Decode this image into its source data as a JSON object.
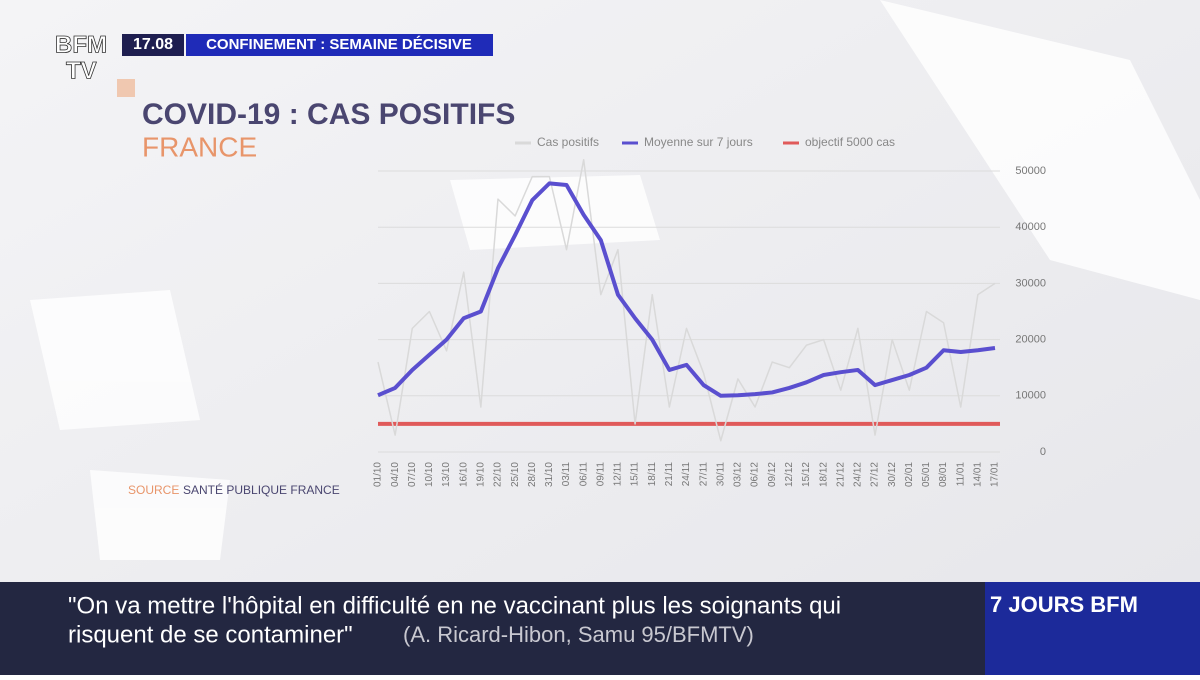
{
  "header": {
    "logo_top": "BFM",
    "logo_bottom": "TV",
    "time": "17.08",
    "headline": "CONFINEMENT : SEMAINE DÉCISIVE"
  },
  "chart_data": {
    "type": "line",
    "title": "COVID-19 : CAS POSITIFS",
    "subtitle": "FRANCE",
    "source_label": "SOURCE",
    "source": "SANTÉ PUBLIQUE FRANCE",
    "categories": [
      "01/10",
      "04/10",
      "07/10",
      "10/10",
      "13/10",
      "16/10",
      "19/10",
      "22/10",
      "25/10",
      "28/10",
      "31/10",
      "03/11",
      "06/11",
      "09/11",
      "12/11",
      "15/11",
      "18/11",
      "21/11",
      "24/11",
      "27/11",
      "30/11",
      "03/12",
      "06/12",
      "09/12",
      "12/12",
      "15/12",
      "18/12",
      "21/12",
      "24/12",
      "27/12",
      "30/12",
      "02/01",
      "05/01",
      "08/01",
      "11/01",
      "14/01",
      "17/01"
    ],
    "series": [
      {
        "name": "Cas positifs",
        "color": "#d9d9d9",
        "values": [
          16000,
          3000,
          22000,
          25000,
          18000,
          32000,
          8000,
          45000,
          42000,
          49000,
          49000,
          36000,
          52000,
          28000,
          36000,
          5000,
          28000,
          8000,
          22000,
          14000,
          2000,
          13000,
          8000,
          16000,
          15000,
          19000,
          20000,
          11000,
          22000,
          3000,
          20000,
          11000,
          25000,
          23000,
          8000,
          28000,
          30000
        ]
      },
      {
        "name": "Moyenne sur 7 jours",
        "color": "#5a4fcf",
        "values": [
          10100,
          11400,
          14600,
          17300,
          20000,
          23800,
          25000,
          32700,
          38600,
          44800,
          47800,
          47500,
          42200,
          37700,
          28000,
          23800,
          20000,
          14600,
          15500,
          11900,
          10000,
          10100,
          10300,
          10600,
          11400,
          12400,
          13700,
          14200,
          14600,
          11900,
          12800,
          13700,
          15000,
          18100,
          17800,
          18100,
          18500
        ]
      }
    ],
    "reference_line": {
      "name": "objectif 5000 cas",
      "value": 5000,
      "color": "#e05a5a"
    },
    "ylim": [
      0,
      50000
    ],
    "yticks": [
      0,
      10000,
      20000,
      30000,
      40000,
      50000
    ],
    "grid": true
  },
  "banner": {
    "quote_line1": "\"On va mettre l'hôpital en difficulté en ne vaccinant plus les soignants qui",
    "quote_line2": "risquent de se contaminer\"",
    "attribution": "(A. Ricard-Hibon, Samu 95/BFMTV)",
    "program": "7 JOURS BFM"
  }
}
